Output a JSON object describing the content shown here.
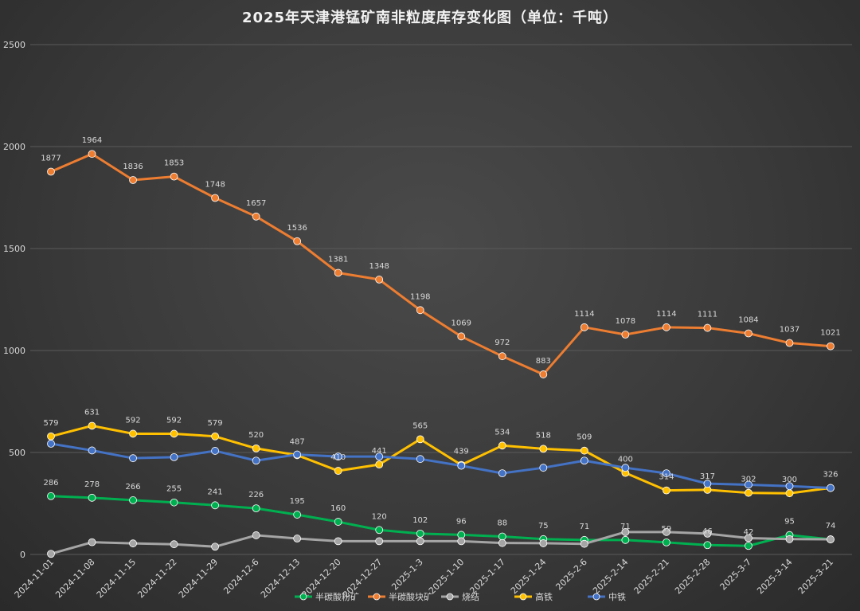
{
  "chart_data": {
    "type": "line",
    "title": "2025年天津港锰矿南非粒度库存变化图（单位：千吨）",
    "xlabel": "",
    "ylabel": "",
    "ylim": [
      0,
      2500
    ],
    "yticks": [
      0,
      500,
      1000,
      1500,
      2000,
      2500
    ],
    "grid": true,
    "legend_position": "bottom",
    "categories": [
      "2024-11-01",
      "2024-11-08",
      "2024-11-15",
      "2024-11-22",
      "2024-11-29",
      "2024-12-6",
      "2024-12-13",
      "2024-12-20",
      "2024-12-27",
      "2025-1-3",
      "2025-1-10",
      "2025-1-17",
      "2025-1-24",
      "2025-2-6",
      "2025-2-14",
      "2025-2-21",
      "2025-2-28",
      "2025-3-7",
      "2025-3-14",
      "2025-3-21"
    ],
    "series": [
      {
        "name": "半碳酸粉矿",
        "color": "#00b050",
        "values": [
          286,
          278,
          266,
          255,
          241,
          226,
          195,
          160,
          120,
          102,
          96,
          88,
          75,
          71,
          71,
          59,
          46,
          42,
          95,
          74
        ],
        "labels": [
          "286",
          "278",
          "266",
          "255",
          "241",
          "226",
          "195",
          "160",
          "120",
          "102",
          "96",
          "88",
          "75",
          "71",
          "71",
          "59",
          "46",
          "42",
          "95",
          "74"
        ]
      },
      {
        "name": "半碳酸块矿",
        "color": "#ed7d31",
        "values": [
          1877,
          1964,
          1836,
          1853,
          1748,
          1657,
          1536,
          1381,
          1348,
          1198,
          1069,
          972,
          883,
          1114,
          1078,
          1114,
          1111,
          1084,
          1037,
          1021
        ],
        "labels": [
          "1877",
          "1964",
          "1836",
          "1853",
          "1748",
          "1657",
          "1536",
          "1381",
          "1348",
          "1198",
          "1069",
          "972",
          "883",
          "1114",
          "1078",
          "1114",
          "1111",
          "1084",
          "1037",
          "1021"
        ]
      },
      {
        "name": "烧结",
        "color": "#a5a5a5",
        "values": [
          3,
          60,
          54,
          50,
          38,
          94,
          78,
          65,
          65,
          65,
          65,
          56,
          55,
          52,
          110,
          110,
          102,
          80,
          75,
          74
        ],
        "labels": []
      },
      {
        "name": "高铁",
        "color": "#ffc000",
        "values": [
          579,
          631,
          592,
          592,
          579,
          520,
          487,
          410,
          441,
          565,
          439,
          534,
          518,
          509,
          400,
          314,
          317,
          302,
          300,
          326
        ],
        "labels": [
          "579",
          "631",
          "592",
          "592",
          "579",
          "520",
          "487",
          "410",
          "441",
          "565",
          "439",
          "534",
          "518",
          "509",
          "400",
          "314",
          "317",
          "302",
          "300",
          "326"
        ]
      },
      {
        "name": "中铁",
        "color": "#4472c4",
        "values": [
          543,
          510,
          472,
          477,
          508,
          460,
          490,
          480,
          480,
          468,
          435,
          398,
          425,
          460,
          425,
          398,
          347,
          342,
          335,
          326
        ],
        "labels": []
      }
    ]
  }
}
